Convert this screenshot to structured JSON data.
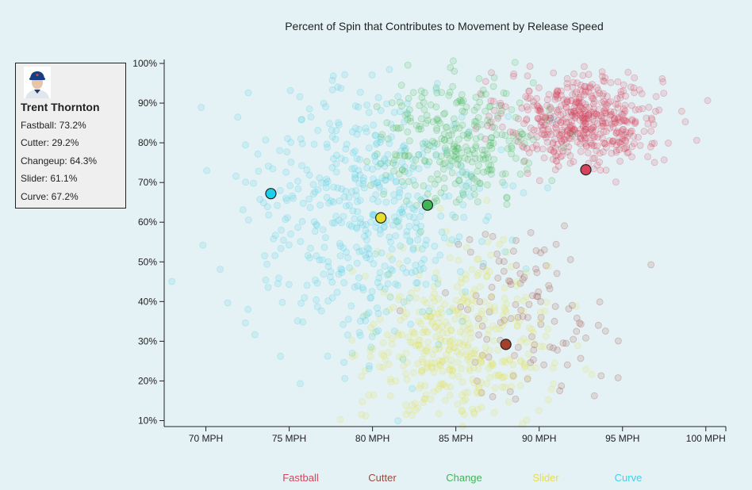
{
  "player": {
    "name": "Trent Thornton",
    "stats": [
      {
        "label": "Fastball: 73.2%"
      },
      {
        "label": "Cutter: 29.2%"
      },
      {
        "label": "Changeup: 64.3%"
      },
      {
        "label": "Slider: 61.1%"
      },
      {
        "label": "Curve: 67.2%"
      }
    ]
  },
  "chart_data": {
    "type": "scatter",
    "title": "Percent of Spin that Contributes to Movement by Release Speed",
    "xlabel": "",
    "ylabel": "",
    "xlim": [
      67.5,
      101.2
    ],
    "ylim": [
      8.5,
      101
    ],
    "x_ticks": [
      {
        "value": 70,
        "label": "70 MPH"
      },
      {
        "value": 75,
        "label": "75 MPH"
      },
      {
        "value": 80,
        "label": "80 MPH"
      },
      {
        "value": 85,
        "label": "85 MPH"
      },
      {
        "value": 90,
        "label": "90 MPH"
      },
      {
        "value": 95,
        "label": "95 MPH"
      },
      {
        "value": 100,
        "label": "100 MPH"
      }
    ],
    "y_ticks": [
      {
        "value": 10,
        "label": "10%"
      },
      {
        "value": 20,
        "label": "20%"
      },
      {
        "value": 30,
        "label": "30%"
      },
      {
        "value": 40,
        "label": "40%"
      },
      {
        "value": 50,
        "label": "50%"
      },
      {
        "value": 60,
        "label": "60%"
      },
      {
        "value": 70,
        "label": "70%"
      },
      {
        "value": 80,
        "label": "80%"
      },
      {
        "value": 90,
        "label": "90%"
      },
      {
        "value": 100,
        "label": "100%"
      }
    ],
    "legend": [
      {
        "name": "Fastball",
        "color": "#d7435b"
      },
      {
        "name": "Cutter",
        "color": "#9b4a3c"
      },
      {
        "name": "Change",
        "color": "#3fb553"
      },
      {
        "name": "Slider",
        "color": "#e6e04c"
      },
      {
        "name": "Curve",
        "color": "#44cfe6"
      }
    ],
    "legend_position": "bottom",
    "highlight_points": [
      {
        "pitch": "Fastball",
        "x": 92.8,
        "y": 73.2,
        "color": "#d7435b"
      },
      {
        "pitch": "Cutter",
        "x": 88.0,
        "y": 29.2,
        "color": "#a5402b"
      },
      {
        "pitch": "Change",
        "x": 83.3,
        "y": 64.3,
        "color": "#3fb553"
      },
      {
        "pitch": "Slider",
        "x": 80.5,
        "y": 61.1,
        "color": "#e6e02a"
      },
      {
        "pitch": "Curve",
        "x": 73.9,
        "y": 67.2,
        "color": "#1cd0ea"
      }
    ],
    "background_series": [
      {
        "name": "Fastball",
        "color": "#d7435b",
        "count": 520,
        "center": [
          92.7,
          86
        ],
        "spread": [
          2.3,
          6
        ]
      },
      {
        "name": "Cutter",
        "color": "#9b4a3c",
        "count": 110,
        "center": [
          89.2,
          38
        ],
        "spread": [
          2.6,
          11
        ]
      },
      {
        "name": "Change",
        "color": "#3fb553",
        "count": 300,
        "center": [
          85.2,
          80
        ],
        "spread": [
          2.4,
          8
        ]
      },
      {
        "name": "Slider",
        "color": "#e6e04c",
        "count": 430,
        "center": [
          85.0,
          29
        ],
        "spread": [
          2.8,
          11
        ]
      },
      {
        "name": "Curve",
        "color": "#44cfe6",
        "count": 500,
        "center": [
          79.5,
          62
        ],
        "spread": [
          3.6,
          17
        ]
      }
    ],
    "grid": false
  }
}
